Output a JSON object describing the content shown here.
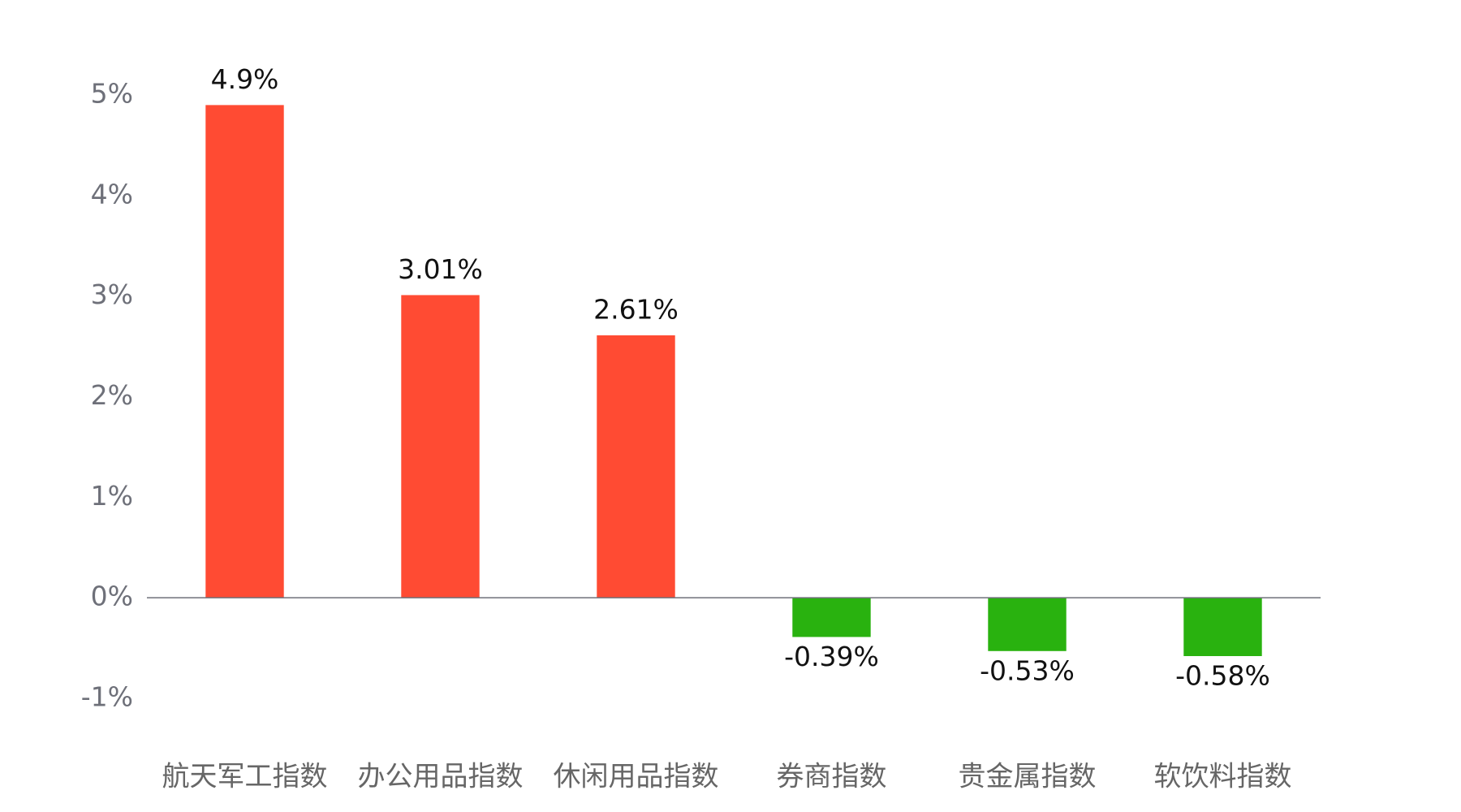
{
  "chart_data": {
    "type": "bar",
    "categories": [
      "航天军工指数",
      "办公用品指数",
      "休闲用品指数",
      "券商指数",
      "贵金属指数",
      "软饮料指数"
    ],
    "values": [
      4.9,
      3.01,
      2.61,
      -0.39,
      -0.53,
      -0.58
    ],
    "value_labels": [
      "4.9%",
      "3.01%",
      "2.61%",
      "-0.39%",
      "-0.53%",
      "-0.58%"
    ],
    "colors": [
      "#ff4b33",
      "#ff4b33",
      "#ff4b33",
      "#29b20f",
      "#29b20f",
      "#29b20f"
    ],
    "ylim": [
      -1,
      5
    ],
    "yticks": [
      {
        "value": -1,
        "label": "-1%"
      },
      {
        "value": 0,
        "label": "0%"
      },
      {
        "value": 1,
        "label": "1%"
      },
      {
        "value": 2,
        "label": "2%"
      },
      {
        "value": 3,
        "label": "3%"
      },
      {
        "value": 4,
        "label": "4%"
      },
      {
        "value": 5,
        "label": "5%"
      }
    ],
    "grid": false
  }
}
